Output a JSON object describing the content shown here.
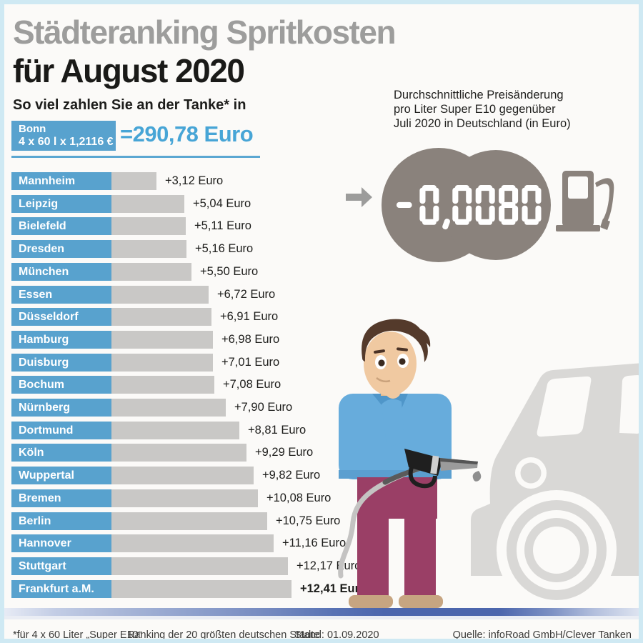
{
  "header": {
    "title_line1": "Städteranking Spritkosten",
    "title_line2": "für August 2020",
    "subtitle": "So viel zahlen Sie an der Tanke* in"
  },
  "bonn": {
    "city": "Bonn",
    "formula": "4 x 60 l x 1,2116 €",
    "total": "=290,78 Euro"
  },
  "info_box": {
    "line1": "Durchschnittliche Preisänderung",
    "line2": "pro Liter Super E10 gegenüber",
    "line3": "Juli 2020 in Deutschland (in Euro)",
    "display_value": "-0,0080"
  },
  "chart_data": {
    "type": "bar",
    "orientation": "horizontal",
    "title": "Städteranking Spritkosten für August 2020",
    "unit": "Euro (Mehrkosten gegenüber Bonn)",
    "baseline_city": "Bonn",
    "baseline_total_euro": 290.78,
    "categories": [
      "Mannheim",
      "Leipzig",
      "Bielefeld",
      "Dresden",
      "München",
      "Essen",
      "Düsseldorf",
      "Hamburg",
      "Duisburg",
      "Bochum",
      "Nürnberg",
      "Dortmund",
      "Köln",
      "Wuppertal",
      "Bremen",
      "Berlin",
      "Hannover",
      "Stuttgart",
      "Frankfurt a.M."
    ],
    "values": [
      3.12,
      5.04,
      5.11,
      5.16,
      5.5,
      6.72,
      6.91,
      6.98,
      7.01,
      7.08,
      7.9,
      8.81,
      9.29,
      9.82,
      10.08,
      10.75,
      11.16,
      12.17,
      12.41
    ],
    "value_labels": [
      "+3,12 Euro",
      "+5,04 Euro",
      "+5,11 Euro",
      "+5,16 Euro",
      "+5,50 Euro",
      "+6,72 Euro",
      "+6,91 Euro",
      "+6,98 Euro",
      "+7,01 Euro",
      "+7,08 Euro",
      "+7,90 Euro",
      "+8,81 Euro",
      "+9,29 Euro",
      "+9,82 Euro",
      "+10,08 Euro",
      "+10,75 Euro",
      "+11,16 Euro",
      "+12,17 Euro",
      "+12,41 Euro"
    ],
    "highlight_last": true,
    "xlim": [
      0,
      12.41
    ],
    "average_price_change_per_liter_euro": -0.008
  },
  "footer": {
    "note": "*für 4 x 60 Liter „Super E10“",
    "ranking": "Ranking der 20 größten deutschen Städte",
    "stand": "Stand: 01.09.2020",
    "source": "Quelle: infoRoad GmbH/Clever Tanken"
  },
  "colors": {
    "accent_blue": "#58a2ce",
    "total_blue": "#47a5d6",
    "bar_gray": "#c9c8c6",
    "title_gray": "#9d9d9c",
    "display_gray": "#8a827c",
    "car_gray": "#d9d8d6",
    "road_blue": "#4c66ad"
  }
}
